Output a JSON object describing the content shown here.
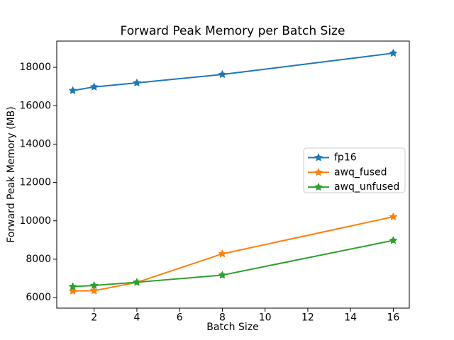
{
  "chart_data": {
    "type": "line",
    "title": "Forward Peak Memory per Batch Size",
    "xlabel": "Batch Size",
    "ylabel": "Forward Peak Memory (MB)",
    "x": [
      1,
      2,
      4,
      8,
      16
    ],
    "series": [
      {
        "name": "fp16",
        "color": "#1f77b4",
        "marker": "star",
        "values": [
          16790,
          16980,
          17190,
          17630,
          18740
        ]
      },
      {
        "name": "awq_fused",
        "color": "#ff7f0e",
        "marker": "star",
        "values": [
          6340,
          6360,
          6790,
          8280,
          10210
        ]
      },
      {
        "name": "awq_unfused",
        "color": "#2ca02c",
        "marker": "star",
        "values": [
          6570,
          6630,
          6800,
          7170,
          8980
        ]
      }
    ],
    "xticks": [
      2,
      4,
      6,
      8,
      10,
      12,
      14,
      16
    ],
    "yticks": [
      6000,
      8000,
      10000,
      12000,
      14000,
      16000,
      18000
    ],
    "xlim": [
      0.25,
      16.75
    ],
    "ylim": [
      5450,
      19370
    ],
    "grid": false,
    "background": "#ffffff",
    "spine_color": "#000000",
    "legend": {
      "position": "center right",
      "border_color": "#cccccc",
      "entries": [
        "fp16",
        "awq_fused",
        "awq_unfused"
      ]
    }
  }
}
